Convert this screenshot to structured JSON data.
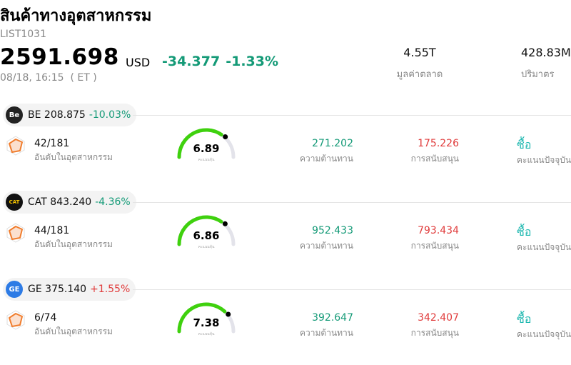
{
  "header": {
    "title": "สินค้าทางอุตสาหกรรม",
    "code": "LIST1031",
    "price": "2591.698",
    "currency": "USD",
    "change": "-34.377",
    "change_pct": "-1.33%",
    "timestamp": "08/18, 16:15  ( ET )"
  },
  "stats": {
    "market_cap_value": "4.55T",
    "market_cap_label": "มูลค่าตลาด",
    "volume_value": "428.83M",
    "volume_label": "ปริมาตร"
  },
  "colors": {
    "down": "#149a77",
    "up": "#e03b3b",
    "accent": "#1fb8b0",
    "gauge": "#3fd10e"
  },
  "stocks": [
    {
      "ticker": "BE",
      "price": "208.875",
      "change_pct": "-10.03%",
      "direction": "down",
      "logo_text": "Be",
      "logo_bg": "#222222",
      "logo_fg": "#ffffff",
      "rank": "42/181",
      "rank_label": "อันดับในอุตสาหกรรม",
      "score": "6.89",
      "score_sub": "คะแนนหุ้น",
      "score_fraction": 0.689,
      "resistance": "271.202",
      "resistance_label": "ความต้านทาน",
      "support": "175.226",
      "support_label": "การสนับสนุน",
      "action": "ซื้อ",
      "action_label": "คะแนนปัจจุบัน"
    },
    {
      "ticker": "CAT",
      "price": "843.240",
      "change_pct": "-4.36%",
      "direction": "down",
      "logo_text": "CAT",
      "logo_bg": "#111111",
      "logo_fg": "#f5c400",
      "rank": "44/181",
      "rank_label": "อันดับในอุตสาหกรรม",
      "score": "6.86",
      "score_sub": "คะแนนหุ้น",
      "score_fraction": 0.686,
      "resistance": "952.433",
      "resistance_label": "ความต้านทาน",
      "support": "793.434",
      "support_label": "การสนับสนุน",
      "action": "ซื้อ",
      "action_label": "คะแนนปัจจุบัน"
    },
    {
      "ticker": "GE",
      "price": "375.140",
      "change_pct": "+1.55%",
      "direction": "up",
      "logo_text": "GE",
      "logo_bg": "#2d7be5",
      "logo_fg": "#ffffff",
      "rank": "6/74",
      "rank_label": "อันดับในอุตสาหกรรม",
      "score": "7.38",
      "score_sub": "คะแนนหุ้น",
      "score_fraction": 0.738,
      "resistance": "392.647",
      "resistance_label": "ความต้านทาน",
      "support": "342.407",
      "support_label": "การสนับสนุน",
      "action": "ซื้อ",
      "action_label": "คะแนนปัจจุบัน"
    }
  ]
}
